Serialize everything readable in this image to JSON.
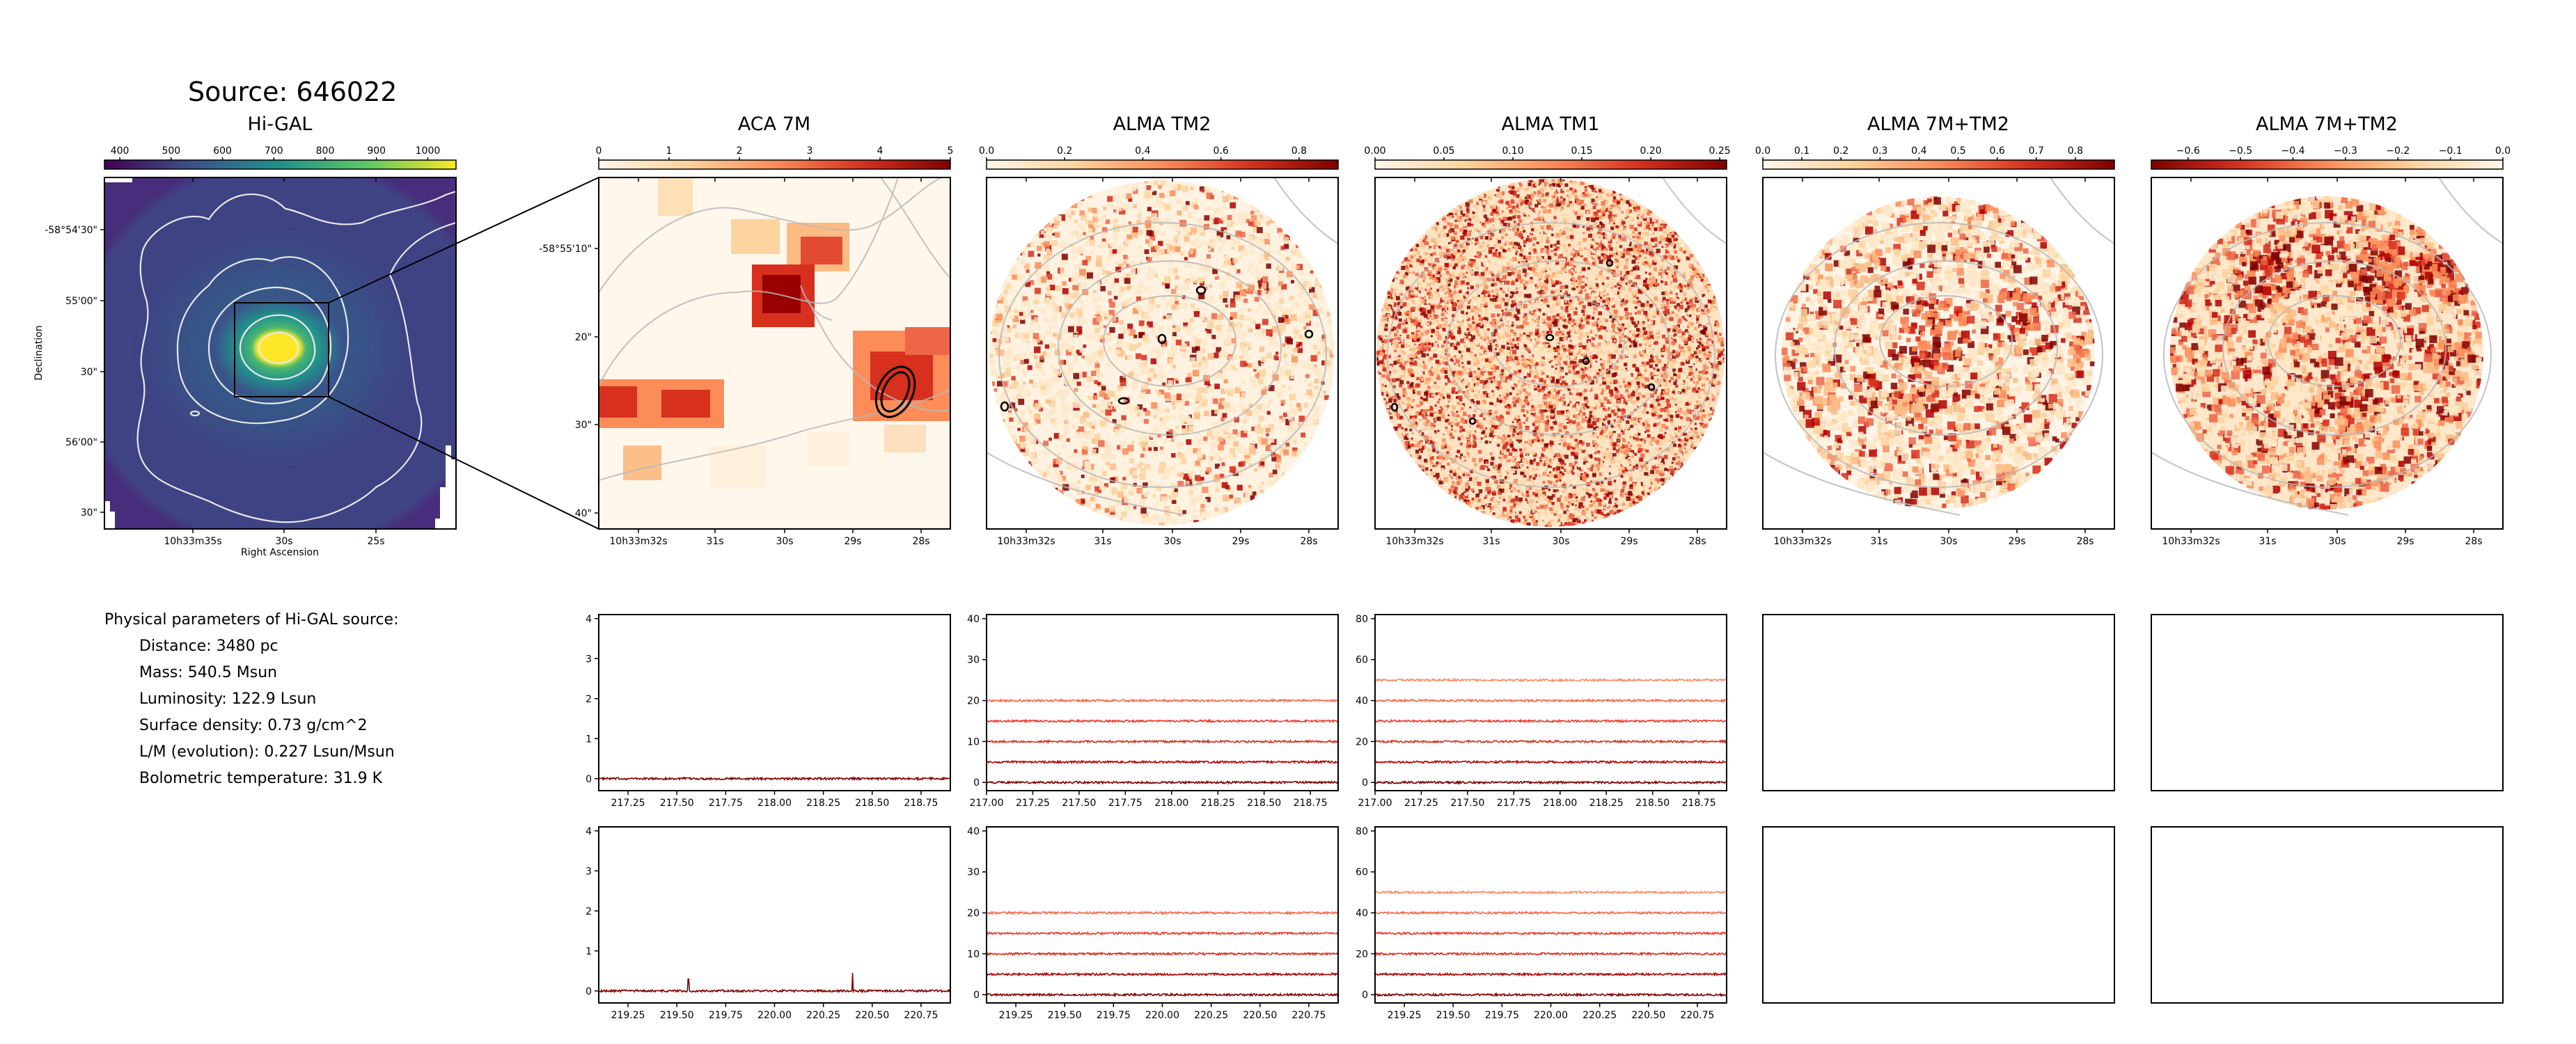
{
  "source_title": "Source: 646022",
  "params": {
    "heading": "Physical parameters of Hi-GAL source:",
    "lines": [
      "Distance: 3480 pc",
      "Mass: 540.5 Msun",
      "Luminosity: 122.9 Lsun",
      "Surface density: 0.73 g/cm^2",
      "L/M (evolution): 0.227 Lsun/Msun",
      "Bolometric temperature: 31.9 K"
    ]
  },
  "colors": {
    "higal_cmap": [
      "#440154",
      "#3b528b",
      "#21918c",
      "#5ec962",
      "#fde725"
    ],
    "orrd_cmap": [
      "#fff7ec",
      "#fdd49e",
      "#fc8d59",
      "#d7301f",
      "#7f0000"
    ],
    "spectra_palette": [
      "#7f0000",
      "#b30000",
      "#d7301f",
      "#ef3b2c",
      "#f46a4a",
      "#fb8a6a"
    ]
  },
  "chart_data": [
    {
      "type": "heatmap",
      "id": "higal",
      "title": "Hi-GAL",
      "colorbar_ticks": [
        "400",
        "500",
        "600",
        "700",
        "800",
        "900",
        "1000"
      ],
      "colorbar_range": [
        370,
        1055
      ],
      "xlabel": "Right Ascension",
      "ylabel": "Declination",
      "x_ticks": [
        "10h33m35s",
        "30s",
        "25s"
      ],
      "y_ticks": [
        "-58°54'30\"",
        "55'00\"",
        "30\"",
        "56'00\"",
        "30\""
      ],
      "contours": true
    },
    {
      "type": "heatmap",
      "id": "aca7m",
      "title": "ACA 7M",
      "colorbar_ticks": [
        "0",
        "1",
        "2",
        "3",
        "4",
        "5"
      ],
      "colorbar_range": [
        0,
        5
      ],
      "x_ticks": [
        "10h33m32s",
        "31s",
        "30s",
        "29s",
        "28s"
      ],
      "y_ticks": [
        "-58°55'10\"",
        "20\"",
        "30\"",
        "40\""
      ]
    },
    {
      "type": "heatmap",
      "id": "tm2",
      "title": "ALMA TM2",
      "colorbar_ticks": [
        "0.0",
        "0.2",
        "0.4",
        "0.6",
        "0.8"
      ],
      "colorbar_range": [
        0,
        0.9
      ],
      "x_ticks": [
        "10h33m32s",
        "31s",
        "30s",
        "29s",
        "28s"
      ]
    },
    {
      "type": "heatmap",
      "id": "tm1",
      "title": "ALMA TM1",
      "colorbar_ticks": [
        "0.00",
        "0.05",
        "0.10",
        "0.15",
        "0.20",
        "0.25"
      ],
      "colorbar_range": [
        0,
        0.255
      ],
      "x_ticks": [
        "10h33m32s",
        "31s",
        "30s",
        "29s",
        "28s"
      ]
    },
    {
      "type": "heatmap",
      "id": "c7mtm2",
      "title": "ALMA 7M+TM2",
      "colorbar_ticks": [
        "0.0",
        "0.1",
        "0.2",
        "0.3",
        "0.4",
        "0.5",
        "0.6",
        "0.7",
        "0.8"
      ],
      "colorbar_range": [
        0,
        0.9
      ],
      "x_ticks": [
        "10h33m32s",
        "31s",
        "30s",
        "29s",
        "28s"
      ]
    },
    {
      "type": "heatmap",
      "id": "c7mtm2b",
      "title": "ALMA 7M+TM2",
      "colorbar_ticks": [
        "−0.6",
        "−0.5",
        "−0.4",
        "−0.3",
        "−0.2",
        "−0.1",
        "0.0"
      ],
      "colorbar_range": [
        -0.67,
        0
      ],
      "x_ticks": [
        "10h33m32s",
        "31s",
        "30s",
        "29s",
        "28s"
      ]
    },
    {
      "type": "line",
      "id": "spec_aca_1",
      "xlim": [
        217.1,
        218.9
      ],
      "ylim": [
        -0.3,
        4.1
      ],
      "x_ticks": [
        217.25,
        217.5,
        217.75,
        218.0,
        218.25,
        218.5,
        218.75
      ],
      "x_tick_labels": [
        "217.25",
        "217.50",
        "217.75",
        "218.00",
        "218.25",
        "218.50",
        "218.75"
      ],
      "y_ticks": [
        "0",
        "1",
        "2",
        "3",
        "4"
      ],
      "y_tick_values": [
        0,
        1,
        2,
        3,
        4
      ],
      "series": [
        {
          "offset": 0,
          "values": []
        }
      ]
    },
    {
      "type": "line",
      "id": "spec_tm2_1",
      "xlim": [
        217.0,
        218.9
      ],
      "ylim": [
        -2,
        41
      ],
      "x_ticks": [
        217.0,
        217.25,
        217.5,
        217.75,
        218.0,
        218.25,
        218.5,
        218.75
      ],
      "x_tick_labels": [
        "217.00",
        "217.25",
        "217.50",
        "217.75",
        "218.00",
        "218.25",
        "218.50",
        "218.75"
      ],
      "y_ticks": [
        "0",
        "10",
        "20",
        "30",
        "40"
      ],
      "y_tick_values": [
        0,
        10,
        20,
        30,
        40
      ],
      "series": [
        {
          "offset": 0
        },
        {
          "offset": 5
        },
        {
          "offset": 10
        },
        {
          "offset": 15
        },
        {
          "offset": 20
        }
      ]
    },
    {
      "type": "line",
      "id": "spec_tm1_1",
      "xlim": [
        217.0,
        218.9
      ],
      "ylim": [
        -4,
        82
      ],
      "x_ticks": [
        217.0,
        217.25,
        217.5,
        217.75,
        218.0,
        218.25,
        218.5,
        218.75
      ],
      "x_tick_labels": [
        "217.00",
        "217.25",
        "217.50",
        "217.75",
        "218.00",
        "218.25",
        "218.50",
        "218.75"
      ],
      "y_ticks": [
        "0",
        "20",
        "40",
        "60",
        "80"
      ],
      "y_tick_values": [
        0,
        20,
        40,
        60,
        80
      ],
      "series": [
        {
          "offset": 0
        },
        {
          "offset": 10
        },
        {
          "offset": 20
        },
        {
          "offset": 30
        },
        {
          "offset": 40
        },
        {
          "offset": 50
        }
      ]
    },
    {
      "type": "line",
      "id": "spec_aca_2",
      "xlim": [
        219.1,
        220.9
      ],
      "ylim": [
        -0.3,
        4.1
      ],
      "x_ticks": [
        219.25,
        219.5,
        219.75,
        220.0,
        220.25,
        220.5,
        220.75
      ],
      "x_tick_labels": [
        "219.25",
        "219.50",
        "219.75",
        "220.00",
        "220.25",
        "220.50",
        "220.75"
      ],
      "y_ticks": [
        "0",
        "1",
        "2",
        "3",
        "4"
      ],
      "y_tick_values": [
        0,
        1,
        2,
        3,
        4
      ],
      "peaks": [
        {
          "x": 219.56,
          "y": 0.3
        },
        {
          "x": 220.4,
          "y": 0.45
        }
      ],
      "series": [
        {
          "offset": 0
        }
      ]
    },
    {
      "type": "line",
      "id": "spec_tm2_2",
      "xlim": [
        219.1,
        220.9
      ],
      "ylim": [
        -2,
        41
      ],
      "x_ticks": [
        219.25,
        219.5,
        219.75,
        220.0,
        220.25,
        220.5,
        220.75
      ],
      "x_tick_labels": [
        "219.25",
        "219.50",
        "219.75",
        "220.00",
        "220.25",
        "220.50",
        "220.75"
      ],
      "y_ticks": [
        "0",
        "10",
        "20",
        "30",
        "40"
      ],
      "y_tick_values": [
        0,
        10,
        20,
        30,
        40
      ],
      "series": [
        {
          "offset": 0
        },
        {
          "offset": 5
        },
        {
          "offset": 10
        },
        {
          "offset": 15
        },
        {
          "offset": 20
        }
      ]
    },
    {
      "type": "line",
      "id": "spec_tm1_2",
      "xlim": [
        219.1,
        220.9
      ],
      "ylim": [
        -4,
        82
      ],
      "x_ticks": [
        219.25,
        219.5,
        219.75,
        220.0,
        220.25,
        220.5,
        220.75
      ],
      "x_tick_labels": [
        "219.25",
        "219.50",
        "219.75",
        "220.00",
        "220.25",
        "220.50",
        "220.75"
      ],
      "y_ticks": [
        "0",
        "20",
        "40",
        "60",
        "80"
      ],
      "y_tick_values": [
        0,
        20,
        40,
        60,
        80
      ],
      "series": [
        {
          "offset": 0
        },
        {
          "offset": 10
        },
        {
          "offset": 20
        },
        {
          "offset": 30
        },
        {
          "offset": 40
        },
        {
          "offset": 50
        }
      ]
    }
  ]
}
